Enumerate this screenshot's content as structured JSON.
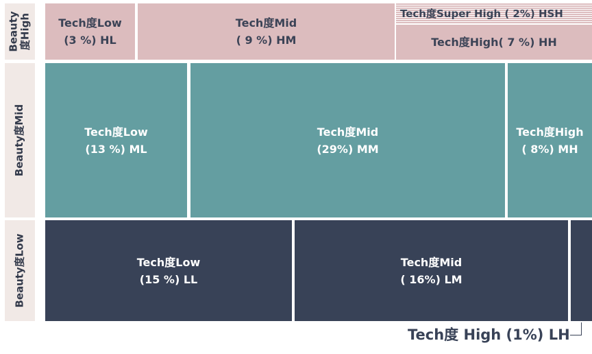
{
  "rows": {
    "high": {
      "label_line1": "Beauty",
      "label_line2": "度High"
    },
    "mid": {
      "label": "Beauty度Mid"
    },
    "low": {
      "label": "Beauty度Low"
    }
  },
  "cells": {
    "HL": {
      "line1": "Tech度Low",
      "line2": "(3 %) HL",
      "share_pct": 3
    },
    "HM": {
      "line1": "Tech度Mid",
      "line2": "( 9 %) HM",
      "share_pct": 9
    },
    "HSH": {
      "text": "Tech度Super High ( 2%) HSH",
      "share_pct": 2
    },
    "HH": {
      "text": "Tech度High( 7 %) HH",
      "share_pct": 7
    },
    "ML": {
      "line1": "Tech度Low",
      "line2": "(13 %) ML",
      "share_pct": 13
    },
    "MM": {
      "line1": "Tech度Mid",
      "line2": "(29%) MM",
      "share_pct": 29
    },
    "MH": {
      "line1": "Tech度High",
      "line2": "( 8%) MH",
      "share_pct": 8
    },
    "LL": {
      "line1": "Tech度Low",
      "line2": "(15 %) LL",
      "share_pct": 15
    },
    "LM": {
      "line1": "Tech度Mid",
      "line2": "( 16%) LM",
      "share_pct": 16
    },
    "LH": {
      "callout": "Tech度 High (1%) LH",
      "share_pct": 1
    }
  },
  "colors": {
    "beauty_high": "#dcbcbe",
    "beauty_mid": "#649ea1",
    "beauty_low": "#384257",
    "row_label_bg": "#f1e9e6"
  }
}
